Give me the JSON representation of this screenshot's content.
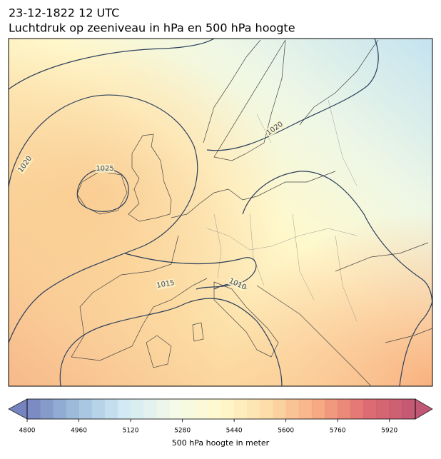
{
  "chart_data": {
    "type": "map",
    "title": "23-12-1822 12 UTC",
    "subtitle": "Luchtdruk op zeeniveau in hPa en 500 hPa hoogte",
    "isobar_labels": [
      1025,
      1020,
      1015,
      1010,
      1020
    ],
    "isobar_color": "#2b3f5c",
    "colorbar": {
      "label": "500 hPa hoogte in meter",
      "lim": [
        4800,
        6000
      ],
      "ticks": [
        4800,
        4960,
        5120,
        5280,
        5440,
        5600,
        5760,
        5920
      ],
      "colors": [
        "#5e6eb3",
        "#8fb3d6",
        "#c9e6f2",
        "#f3f9e6",
        "#fff8c4",
        "#fdd598",
        "#f59a6c",
        "#d9535a",
        "#b63a5c"
      ]
    }
  }
}
